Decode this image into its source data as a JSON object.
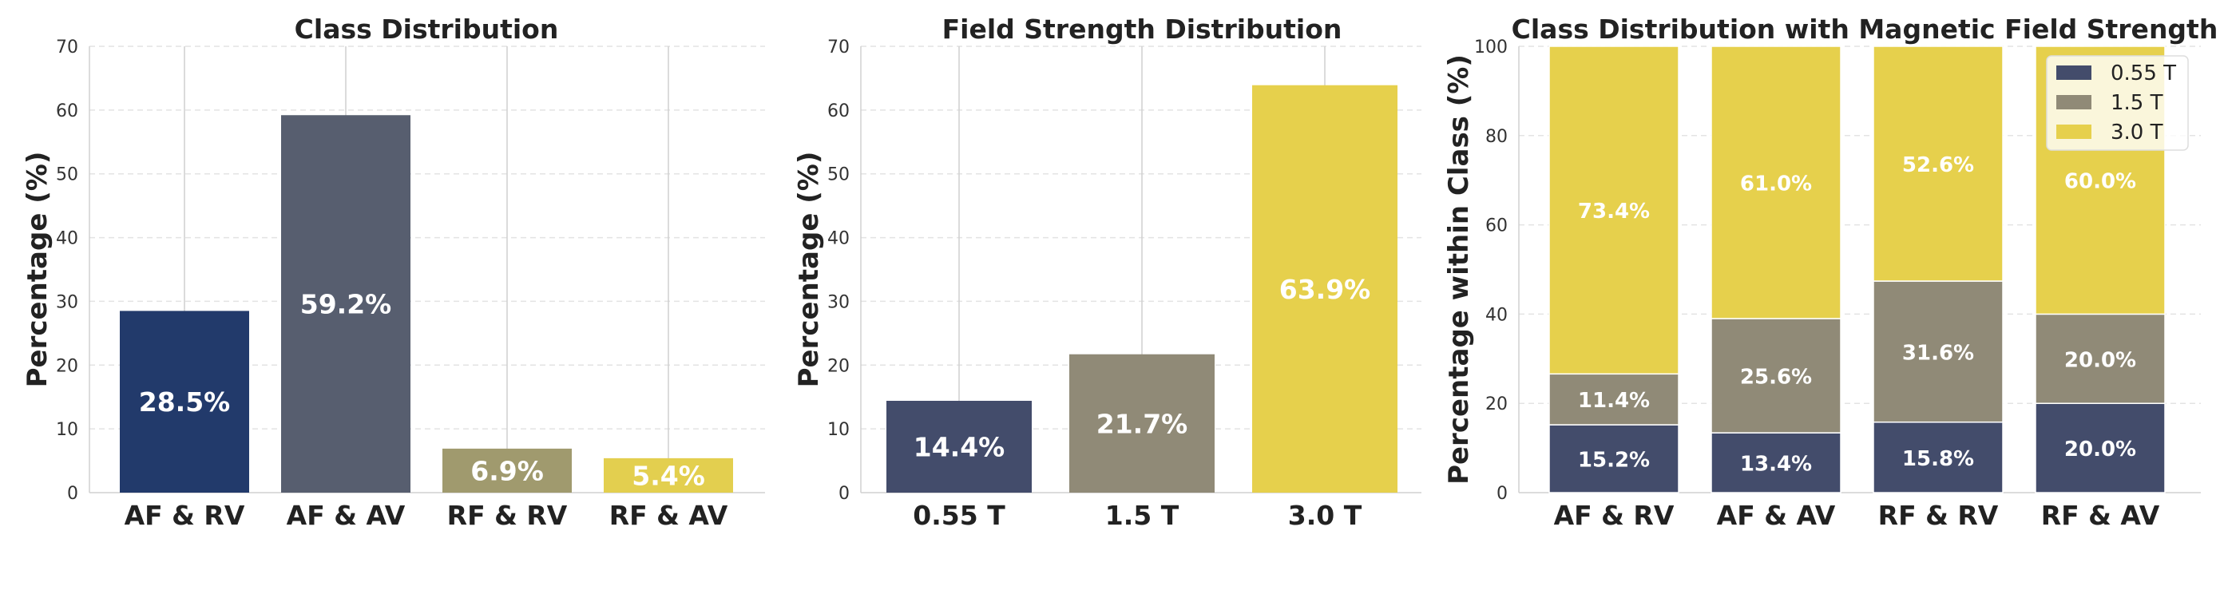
{
  "chart_data": [
    {
      "type": "bar",
      "title": "Class Distribution",
      "ylabel": "Percentage (%)",
      "xlabel": "",
      "ylim": [
        0,
        70
      ],
      "yticks": [
        0,
        10,
        20,
        30,
        40,
        50,
        60,
        70
      ],
      "grid": true,
      "categories": [
        "AF & RV",
        "AF & AV",
        "RF & RV",
        "RF & AV"
      ],
      "values": [
        28.5,
        59.2,
        6.9,
        5.4
      ],
      "labels": [
        "28.5%",
        "59.2%",
        "6.9%",
        "5.4%"
      ],
      "colors": [
        "#223a6b",
        "#575e6f",
        "#a09a6e",
        "#e3cf4f"
      ]
    },
    {
      "type": "bar",
      "title": "Field Strength Distribution",
      "ylabel": "Percentage (%)",
      "xlabel": "",
      "ylim": [
        0,
        70
      ],
      "yticks": [
        0,
        10,
        20,
        30,
        40,
        50,
        60,
        70
      ],
      "grid": true,
      "categories": [
        "0.55 T",
        "1.5 T",
        "3.0 T"
      ],
      "values": [
        14.4,
        21.7,
        63.9
      ],
      "labels": [
        "14.4%",
        "21.7%",
        "63.9%"
      ],
      "colors": [
        "#434c6b",
        "#908a77",
        "#e6d04c"
      ]
    },
    {
      "type": "bar",
      "stacked": true,
      "title": "Class Distribution with Magnetic Field Strength",
      "ylabel": "Percentage within Class (%)",
      "xlabel": "",
      "ylim": [
        0,
        100
      ],
      "yticks": [
        0,
        20,
        40,
        60,
        80,
        100
      ],
      "grid": true,
      "legend_position": "top-right",
      "categories": [
        "AF & RV",
        "AF & AV",
        "RF & RV",
        "RF & AV"
      ],
      "series": [
        {
          "name": "0.55 T",
          "color": "#434c6b",
          "values": [
            15.2,
            13.4,
            15.8,
            20.0
          ],
          "labels": [
            "15.2%",
            "13.4%",
            "15.8%",
            "20.0%"
          ]
        },
        {
          "name": "1.5 T",
          "color": "#908a77",
          "values": [
            11.4,
            25.6,
            31.6,
            20.0
          ],
          "labels": [
            "11.4%",
            "25.6%",
            "31.6%",
            "20.0%"
          ]
        },
        {
          "name": "3.0 T",
          "color": "#e6d04c",
          "values": [
            73.4,
            61.0,
            52.6,
            60.0
          ],
          "labels": [
            "73.4%",
            "61.0%",
            "52.6%",
            "60.0%"
          ]
        }
      ]
    }
  ]
}
